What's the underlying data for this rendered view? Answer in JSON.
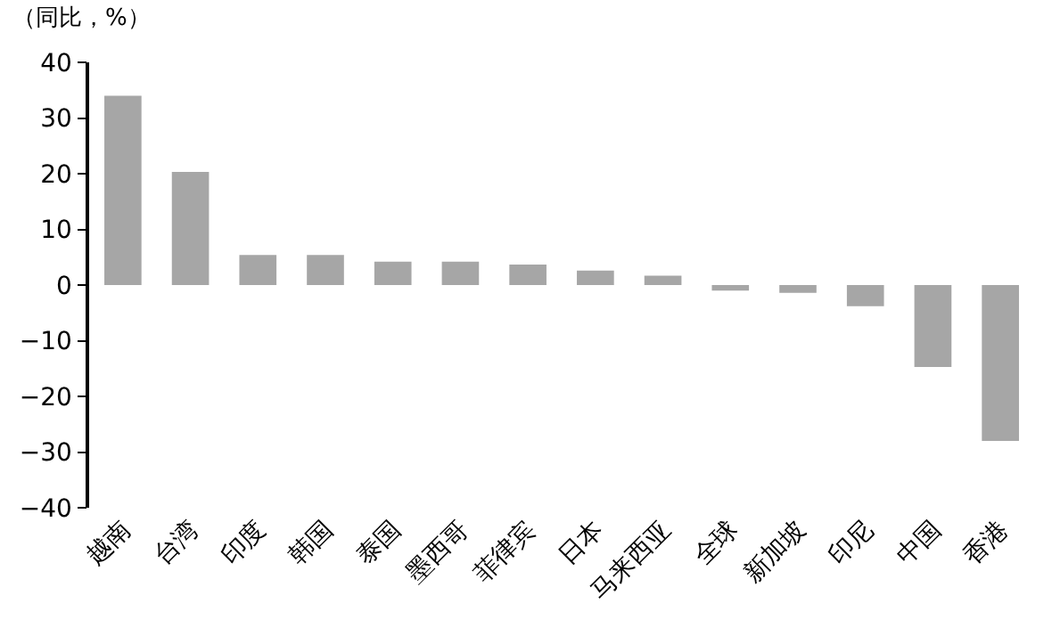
{
  "chart_data": {
    "type": "bar",
    "ylabel": "（同比，%）",
    "categories": [
      "越南",
      "台湾",
      "印度",
      "韩国",
      "泰国",
      "墨西哥",
      "菲律宾",
      "日本",
      "马来西亚",
      "全球",
      "新加坡",
      "印尼",
      "中国",
      "香港"
    ],
    "values": [
      34,
      20.3,
      5.4,
      5.4,
      4.2,
      4.2,
      3.7,
      2.6,
      1.7,
      -1,
      -1.4,
      -3.8,
      -14.7,
      -28
    ],
    "color": "#a6a6a6",
    "ylim": [
      -40,
      40
    ],
    "yticks": [
      -40,
      -30,
      -20,
      -10,
      0,
      10,
      20,
      30,
      40
    ],
    "grid": false
  }
}
